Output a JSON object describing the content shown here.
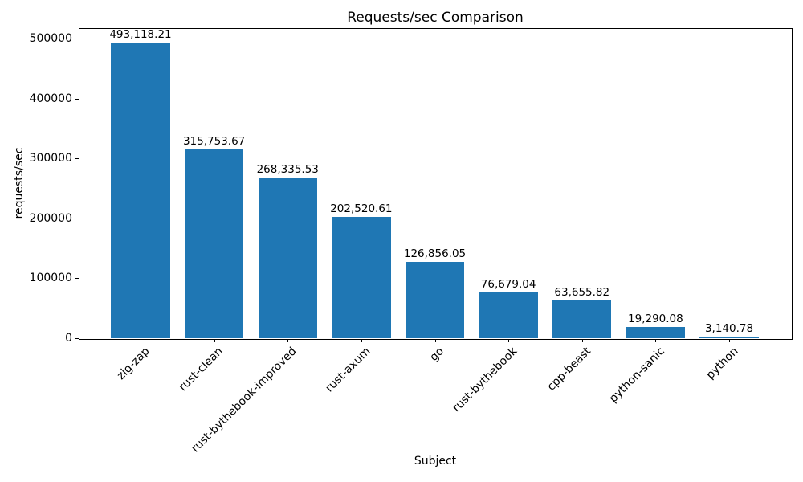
{
  "figure": {
    "title": "Requests/sec Comparison",
    "xlabel": "Subject",
    "ylabel": "requests/sec"
  },
  "chart_data": {
    "type": "bar",
    "title": "Requests/sec Comparison",
    "xlabel": "Subject",
    "ylabel": "requests/sec",
    "categories": [
      "zig-zap",
      "rust-clean",
      "rust-bythebook-improved",
      "rust-axum",
      "go",
      "rust-bythebook",
      "cpp-beast",
      "python-sanic",
      "python"
    ],
    "values": [
      493118.21,
      315753.67,
      268335.53,
      202520.61,
      126856.05,
      76679.04,
      63655.82,
      19290.08,
      3140.78
    ],
    "value_labels": [
      "493,118.21",
      "315,753.67",
      "268,335.53",
      "202,520.61",
      "126,856.05",
      "76,679.04",
      "63,655.82",
      "19,290.08",
      "3,140.78"
    ],
    "yticks": [
      0,
      100000,
      200000,
      300000,
      400000,
      500000
    ],
    "ytick_labels": [
      "0",
      "100000",
      "200000",
      "300000",
      "400000",
      "500000"
    ],
    "ylim": [
      0,
      517774
    ],
    "bar_color": "#1f77b4",
    "grid": false,
    "legend": null
  }
}
